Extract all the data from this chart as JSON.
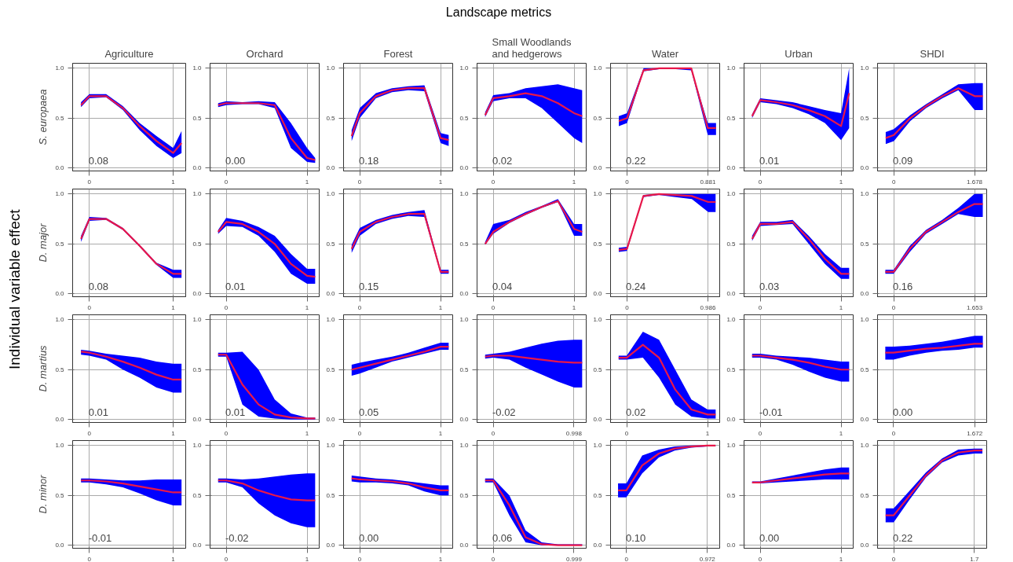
{
  "chart_data": [
    {
      "type": "other",
      "title": "Landscape metrics",
      "ylabel": "Individual variable effect"
    },
    {
      "type": "line",
      "title": "Agriculture",
      "ylabel": "S. europaea",
      "x": [
        -0.1,
        0,
        0.2,
        0.4,
        0.6,
        0.8,
        1,
        1.1
      ],
      "xlim": [
        -0.2,
        1.15
      ],
      "xticks": [
        0,
        1
      ],
      "ylim": [
        -0.03,
        1.05
      ],
      "yticks": [
        {
          "value": 0,
          "label": "0.0"
        },
        {
          "value": 0.5,
          "label": "0.5"
        },
        {
          "value": 1,
          "label": "1.0"
        }
      ],
      "grid": true,
      "annotations": [
        "0.08"
      ],
      "series": [
        {
          "color": "#e8174a",
          "values": [
            0.63,
            0.72,
            0.72,
            0.6,
            0.42,
            0.27,
            0.15,
            0.25
          ],
          "lower": [
            0.61,
            0.7,
            0.71,
            0.58,
            0.38,
            0.22,
            0.1,
            0.15
          ],
          "upper": [
            0.66,
            0.74,
            0.74,
            0.62,
            0.45,
            0.32,
            0.2,
            0.37
          ]
        }
      ]
    },
    {
      "type": "line",
      "title": "Orchard",
      "x": [
        -0.1,
        0,
        0.2,
        0.4,
        0.6,
        0.8,
        1,
        1.1
      ],
      "xlim": [
        -0.2,
        1.15
      ],
      "xticks": [
        0,
        1
      ],
      "ylim": [
        -0.03,
        1.05
      ],
      "yticks": [
        {
          "value": 0,
          "label": "0.0"
        },
        {
          "value": 0.5,
          "label": "0.5"
        },
        {
          "value": 1,
          "label": "1.0"
        }
      ],
      "grid": true,
      "annotations": [
        "0.00"
      ],
      "series": [
        {
          "color": "#e8174a",
          "values": [
            0.63,
            0.65,
            0.65,
            0.65,
            0.63,
            0.3,
            0.1,
            0.08
          ],
          "lower": [
            0.61,
            0.63,
            0.64,
            0.64,
            0.6,
            0.2,
            0.06,
            0.05
          ],
          "upper": [
            0.65,
            0.67,
            0.66,
            0.67,
            0.66,
            0.45,
            0.2,
            0.1
          ]
        }
      ]
    },
    {
      "type": "line",
      "title": "Forest",
      "x": [
        -0.1,
        0,
        0.2,
        0.4,
        0.6,
        0.8,
        1,
        1.1
      ],
      "xlim": [
        -0.2,
        1.15
      ],
      "xticks": [
        0,
        1
      ],
      "ylim": [
        -0.03,
        1.05
      ],
      "yticks": [
        {
          "value": 0,
          "label": "0.0"
        },
        {
          "value": 0.5,
          "label": "0.5"
        },
        {
          "value": 1,
          "label": "1.0"
        }
      ],
      "grid": true,
      "annotations": [
        "0.18"
      ],
      "series": [
        {
          "color": "#e8174a",
          "values": [
            0.32,
            0.55,
            0.72,
            0.78,
            0.8,
            0.8,
            0.3,
            0.28
          ],
          "lower": [
            0.27,
            0.5,
            0.7,
            0.76,
            0.78,
            0.77,
            0.25,
            0.22
          ],
          "upper": [
            0.38,
            0.6,
            0.75,
            0.8,
            0.82,
            0.83,
            0.35,
            0.33
          ]
        }
      ]
    },
    {
      "type": "line",
      "title": "Small Woodlands\nand hedgerows",
      "x": [
        -0.1,
        0,
        0.2,
        0.4,
        0.6,
        0.8,
        1,
        1.1
      ],
      "xlim": [
        -0.2,
        1.15
      ],
      "xticks": [
        0,
        1
      ],
      "ylim": [
        -0.03,
        1.05
      ],
      "yticks": [
        {
          "value": 0,
          "label": "0.0"
        },
        {
          "value": 0.5,
          "label": "0.5"
        },
        {
          "value": 1,
          "label": "1.0"
        }
      ],
      "grid": true,
      "annotations": [
        "0.02"
      ],
      "series": [
        {
          "color": "#e8174a",
          "values": [
            0.53,
            0.7,
            0.72,
            0.75,
            0.72,
            0.65,
            0.55,
            0.52
          ],
          "lower": [
            0.51,
            0.67,
            0.7,
            0.7,
            0.6,
            0.45,
            0.3,
            0.25
          ],
          "upper": [
            0.56,
            0.73,
            0.75,
            0.8,
            0.82,
            0.84,
            0.8,
            0.78
          ]
        }
      ]
    },
    {
      "type": "line",
      "title": "Water",
      "x": [
        -0.09,
        0,
        0.18,
        0.35,
        0.53,
        0.7,
        0.88,
        0.97
      ],
      "xlim": [
        -0.18,
        1.01
      ],
      "xticks": [
        0,
        0.881
      ],
      "ylim": [
        -0.03,
        1.05
      ],
      "yticks": [
        {
          "value": 0,
          "label": "0.0"
        },
        {
          "value": 0.5,
          "label": "0.5"
        },
        {
          "value": 1,
          "label": "1.0"
        }
      ],
      "grid": true,
      "annotations": [
        "0.22"
      ],
      "series": [
        {
          "color": "#e8174a",
          "values": [
            0.47,
            0.5,
            0.98,
            1,
            1,
            1,
            0.4,
            0.4
          ],
          "lower": [
            0.42,
            0.45,
            0.97,
            0.99,
            0.99,
            0.98,
            0.33,
            0.33
          ],
          "upper": [
            0.52,
            0.55,
            1,
            1,
            1,
            1,
            0.45,
            0.45
          ]
        }
      ]
    },
    {
      "type": "line",
      "title": "Urban",
      "x": [
        -0.1,
        0,
        0.2,
        0.4,
        0.6,
        0.8,
        1,
        1.1
      ],
      "xlim": [
        -0.2,
        1.15
      ],
      "xticks": [
        0,
        1
      ],
      "ylim": [
        -0.03,
        1.05
      ],
      "yticks": [
        {
          "value": 0,
          "label": "0.0"
        },
        {
          "value": 0.5,
          "label": "0.5"
        },
        {
          "value": 1,
          "label": "1.0"
        }
      ],
      "grid": true,
      "annotations": [
        "0.01"
      ],
      "series": [
        {
          "color": "#e8174a",
          "values": [
            0.52,
            0.68,
            0.66,
            0.63,
            0.58,
            0.52,
            0.42,
            0.75
          ],
          "lower": [
            0.5,
            0.66,
            0.64,
            0.6,
            0.54,
            0.45,
            0.28,
            0.4
          ],
          "upper": [
            0.54,
            0.7,
            0.68,
            0.66,
            0.62,
            0.58,
            0.55,
            1.0
          ]
        }
      ]
    },
    {
      "type": "line",
      "title": "SHDI",
      "x": [
        -0.17,
        0,
        0.34,
        0.67,
        1.01,
        1.34,
        1.68,
        1.85
      ],
      "xlim": [
        -0.34,
        1.93
      ],
      "xticks": [
        0,
        1.678
      ],
      "ylim": [
        -0.03,
        1.05
      ],
      "yticks": [
        {
          "value": 0,
          "label": "0.0"
        },
        {
          "value": 0.5,
          "label": "0.5"
        },
        {
          "value": 1,
          "label": "1.0"
        }
      ],
      "grid": true,
      "annotations": [
        "0.09"
      ],
      "series": [
        {
          "color": "#e8174a",
          "values": [
            0.3,
            0.33,
            0.5,
            0.62,
            0.72,
            0.8,
            0.72,
            0.72
          ],
          "lower": [
            0.24,
            0.27,
            0.47,
            0.6,
            0.7,
            0.78,
            0.58,
            0.58
          ],
          "upper": [
            0.36,
            0.39,
            0.53,
            0.64,
            0.74,
            0.84,
            0.85,
            0.85
          ]
        }
      ]
    },
    {
      "type": "line",
      "ylabel": "D. major",
      "x": [
        -0.1,
        0,
        0.2,
        0.4,
        0.6,
        0.8,
        1,
        1.1
      ],
      "xlim": [
        -0.2,
        1.15
      ],
      "xticks": [
        0,
        1
      ],
      "ylim": [
        -0.03,
        1.05
      ],
      "yticks": [
        {
          "value": 0,
          "label": "0.0"
        },
        {
          "value": 0.5,
          "label": "0.5"
        },
        {
          "value": 1,
          "label": "1.0"
        }
      ],
      "grid": true,
      "annotations": [
        "0.08"
      ],
      "series": [
        {
          "color": "#e8174a",
          "values": [
            0.55,
            0.75,
            0.75,
            0.65,
            0.48,
            0.3,
            0.2,
            0.2
          ],
          "lower": [
            0.52,
            0.73,
            0.74,
            0.64,
            0.47,
            0.29,
            0.16,
            0.16
          ],
          "upper": [
            0.58,
            0.77,
            0.76,
            0.66,
            0.49,
            0.31,
            0.24,
            0.24
          ]
        }
      ]
    },
    {
      "type": "line",
      "x": [
        -0.1,
        0,
        0.2,
        0.4,
        0.6,
        0.8,
        1,
        1.1
      ],
      "xlim": [
        -0.2,
        1.15
      ],
      "xticks": [
        0,
        1
      ],
      "ylim": [
        -0.03,
        1.05
      ],
      "yticks": [
        {
          "value": 0,
          "label": "0.0"
        },
        {
          "value": 0.5,
          "label": "0.5"
        },
        {
          "value": 1,
          "label": "1.0"
        }
      ],
      "grid": true,
      "annotations": [
        "0.01"
      ],
      "series": [
        {
          "color": "#e8174a",
          "values": [
            0.62,
            0.72,
            0.7,
            0.62,
            0.5,
            0.3,
            0.18,
            0.17
          ],
          "lower": [
            0.6,
            0.68,
            0.67,
            0.58,
            0.42,
            0.2,
            0.1,
            0.1
          ],
          "upper": [
            0.64,
            0.76,
            0.73,
            0.67,
            0.58,
            0.4,
            0.25,
            0.25
          ]
        }
      ]
    },
    {
      "type": "line",
      "x": [
        -0.1,
        0,
        0.2,
        0.4,
        0.6,
        0.8,
        1,
        1.1
      ],
      "xlim": [
        -0.2,
        1.15
      ],
      "xticks": [
        0,
        1
      ],
      "ylim": [
        -0.03,
        1.05
      ],
      "yticks": [
        {
          "value": 0,
          "label": "0.0"
        },
        {
          "value": 0.5,
          "label": "0.5"
        },
        {
          "value": 1,
          "label": "1.0"
        }
      ],
      "grid": true,
      "annotations": [
        "0.15"
      ],
      "series": [
        {
          "color": "#e8174a",
          "values": [
            0.45,
            0.62,
            0.72,
            0.77,
            0.8,
            0.8,
            0.22,
            0.22
          ],
          "lower": [
            0.41,
            0.58,
            0.7,
            0.75,
            0.78,
            0.77,
            0.2,
            0.2
          ],
          "upper": [
            0.49,
            0.66,
            0.74,
            0.79,
            0.82,
            0.84,
            0.24,
            0.24
          ]
        }
      ]
    },
    {
      "type": "line",
      "x": [
        -0.1,
        0,
        0.2,
        0.4,
        0.6,
        0.8,
        1,
        1.1
      ],
      "xlim": [
        -0.2,
        1.15
      ],
      "xticks": [
        0,
        1
      ],
      "ylim": [
        -0.03,
        1.05
      ],
      "yticks": [
        {
          "value": 0,
          "label": "0.0"
        },
        {
          "value": 0.5,
          "label": "0.5"
        },
        {
          "value": 1,
          "label": "1.0"
        }
      ],
      "grid": true,
      "annotations": [
        "0.04"
      ],
      "series": [
        {
          "color": "#e8174a",
          "values": [
            0.5,
            0.62,
            0.72,
            0.8,
            0.87,
            0.93,
            0.65,
            0.62
          ],
          "lower": [
            0.49,
            0.6,
            0.71,
            0.79,
            0.86,
            0.92,
            0.58,
            0.58
          ],
          "upper": [
            0.52,
            0.7,
            0.74,
            0.82,
            0.88,
            0.95,
            0.7,
            0.7
          ]
        }
      ]
    },
    {
      "type": "line",
      "x": [
        -0.1,
        0,
        0.2,
        0.39,
        0.59,
        0.79,
        0.99,
        1.08
      ],
      "xlim": [
        -0.2,
        1.13
      ],
      "xticks": [
        0,
        0.986
      ],
      "ylim": [
        -0.03,
        1.05
      ],
      "yticks": [
        {
          "value": 0,
          "label": "0.0"
        },
        {
          "value": 0.5,
          "label": "0.5"
        },
        {
          "value": 1,
          "label": "1.0"
        }
      ],
      "grid": true,
      "annotations": [
        "0.24"
      ],
      "series": [
        {
          "color": "#e8174a",
          "values": [
            0.44,
            0.45,
            0.98,
            1,
            0.99,
            0.98,
            0.92,
            0.92
          ],
          "lower": [
            0.42,
            0.43,
            0.97,
            0.99,
            0.97,
            0.95,
            0.82,
            0.82
          ],
          "upper": [
            0.46,
            0.47,
            0.99,
            1,
            1,
            1,
            1,
            1
          ]
        }
      ]
    },
    {
      "type": "line",
      "x": [
        -0.1,
        0,
        0.2,
        0.4,
        0.6,
        0.8,
        1,
        1.1
      ],
      "xlim": [
        -0.2,
        1.15
      ],
      "xticks": [
        0,
        1
      ],
      "ylim": [
        -0.03,
        1.05
      ],
      "yticks": [
        {
          "value": 0,
          "label": "0.0"
        },
        {
          "value": 0.5,
          "label": "0.5"
        },
        {
          "value": 1,
          "label": "1.0"
        }
      ],
      "grid": true,
      "annotations": [
        "0.03"
      ],
      "series": [
        {
          "color": "#e8174a",
          "values": [
            0.55,
            0.7,
            0.7,
            0.72,
            0.55,
            0.35,
            0.2,
            0.2
          ],
          "lower": [
            0.53,
            0.68,
            0.69,
            0.7,
            0.5,
            0.3,
            0.15,
            0.15
          ],
          "upper": [
            0.58,
            0.72,
            0.72,
            0.74,
            0.58,
            0.4,
            0.26,
            0.26
          ]
        }
      ]
    },
    {
      "type": "line",
      "x": [
        -0.17,
        0,
        0.33,
        0.66,
        0.99,
        1.32,
        1.65,
        1.82
      ],
      "xlim": [
        -0.33,
        1.9
      ],
      "xticks": [
        0,
        1.653
      ],
      "ylim": [
        -0.03,
        1.05
      ],
      "yticks": [
        {
          "value": 0,
          "label": "0.0"
        },
        {
          "value": 0.5,
          "label": "0.5"
        },
        {
          "value": 1,
          "label": "1.0"
        }
      ],
      "grid": true,
      "annotations": [
        "0.16"
      ],
      "series": [
        {
          "color": "#e8174a",
          "values": [
            0.22,
            0.22,
            0.45,
            0.62,
            0.72,
            0.82,
            0.9,
            0.9
          ],
          "lower": [
            0.2,
            0.2,
            0.42,
            0.6,
            0.7,
            0.8,
            0.77,
            0.77
          ],
          "upper": [
            0.24,
            0.24,
            0.48,
            0.64,
            0.74,
            0.86,
            1,
            1
          ]
        }
      ]
    },
    {
      "type": "line",
      "ylabel": "D. martius",
      "x": [
        -0.1,
        0,
        0.2,
        0.4,
        0.6,
        0.8,
        1,
        1.1
      ],
      "xlim": [
        -0.2,
        1.15
      ],
      "xticks": [
        0,
        1
      ],
      "ylim": [
        -0.03,
        1.05
      ],
      "yticks": [
        {
          "value": 0,
          "label": "0.0"
        },
        {
          "value": 0.5,
          "label": "0.5"
        },
        {
          "value": 1,
          "label": "1.0"
        }
      ],
      "grid": true,
      "annotations": [
        "0.01"
      ],
      "series": [
        {
          "color": "#e8174a",
          "values": [
            0.68,
            0.67,
            0.63,
            0.58,
            0.52,
            0.45,
            0.4,
            0.4
          ],
          "lower": [
            0.65,
            0.64,
            0.6,
            0.5,
            0.42,
            0.32,
            0.27,
            0.27
          ],
          "upper": [
            0.7,
            0.69,
            0.66,
            0.64,
            0.62,
            0.58,
            0.56,
            0.56
          ]
        }
      ]
    },
    {
      "type": "line",
      "x": [
        -0.1,
        0,
        0.2,
        0.4,
        0.6,
        0.8,
        1,
        1.1
      ],
      "xlim": [
        -0.2,
        1.15
      ],
      "xticks": [
        0,
        1
      ],
      "ylim": [
        -0.03,
        1.05
      ],
      "yticks": [
        {
          "value": 0,
          "label": "0.0"
        },
        {
          "value": 0.5,
          "label": "0.5"
        },
        {
          "value": 1,
          "label": "1.0"
        }
      ],
      "grid": true,
      "annotations": [
        "0.01"
      ],
      "series": [
        {
          "color": "#e8174a",
          "values": [
            0.65,
            0.65,
            0.35,
            0.15,
            0.05,
            0.02,
            0.01,
            0.01
          ],
          "lower": [
            0.63,
            0.63,
            0.15,
            0.03,
            0.01,
            0,
            0,
            0
          ],
          "upper": [
            0.67,
            0.67,
            0.68,
            0.5,
            0.2,
            0.06,
            0.02,
            0.02
          ]
        }
      ]
    },
    {
      "type": "line",
      "x": [
        -0.1,
        0,
        0.2,
        0.4,
        0.6,
        0.8,
        1,
        1.1
      ],
      "xlim": [
        -0.2,
        1.15
      ],
      "xticks": [
        0,
        1
      ],
      "ylim": [
        -0.03,
        1.05
      ],
      "yticks": [
        {
          "value": 0,
          "label": "0.0"
        },
        {
          "value": 0.5,
          "label": "0.5"
        },
        {
          "value": 1,
          "label": "1.0"
        }
      ],
      "grid": true,
      "annotations": [
        "0.05"
      ],
      "series": [
        {
          "color": "#e8174a",
          "values": [
            0.5,
            0.52,
            0.56,
            0.6,
            0.64,
            0.68,
            0.73,
            0.73
          ],
          "lower": [
            0.44,
            0.46,
            0.52,
            0.58,
            0.62,
            0.66,
            0.7,
            0.7
          ],
          "upper": [
            0.55,
            0.57,
            0.6,
            0.63,
            0.67,
            0.72,
            0.77,
            0.77
          ]
        }
      ]
    },
    {
      "type": "line",
      "x": [
        -0.1,
        0,
        0.2,
        0.4,
        0.6,
        0.8,
        1,
        1.1
      ],
      "xlim": [
        -0.2,
        1.15
      ],
      "xticks": [
        0,
        0.998
      ],
      "ylim": [
        -0.03,
        1.05
      ],
      "yticks": [
        {
          "value": 0,
          "label": "0.0"
        },
        {
          "value": 0.5,
          "label": "0.5"
        },
        {
          "value": 1,
          "label": "1.0"
        }
      ],
      "grid": true,
      "annotations": [
        "-0.02"
      ],
      "series": [
        {
          "color": "#e8174a",
          "values": [
            0.63,
            0.64,
            0.64,
            0.62,
            0.6,
            0.58,
            0.57,
            0.57
          ],
          "lower": [
            0.61,
            0.62,
            0.6,
            0.52,
            0.45,
            0.38,
            0.32,
            0.32
          ],
          "upper": [
            0.65,
            0.66,
            0.68,
            0.72,
            0.76,
            0.79,
            0.8,
            0.8
          ]
        }
      ]
    },
    {
      "type": "line",
      "x": [
        -0.1,
        0,
        0.2,
        0.4,
        0.6,
        0.8,
        1,
        1.1
      ],
      "xlim": [
        -0.2,
        1.15
      ],
      "xticks": [
        0,
        1
      ],
      "ylim": [
        -0.03,
        1.05
      ],
      "yticks": [
        {
          "value": 0,
          "label": "0.0"
        },
        {
          "value": 0.5,
          "label": "0.5"
        },
        {
          "value": 1,
          "label": "1.0"
        }
      ],
      "grid": true,
      "annotations": [
        "0.02"
      ],
      "series": [
        {
          "color": "#e8174a",
          "values": [
            0.62,
            0.62,
            0.75,
            0.62,
            0.3,
            0.1,
            0.05,
            0.05
          ],
          "lower": [
            0.6,
            0.6,
            0.62,
            0.42,
            0.15,
            0.03,
            0.01,
            0.01
          ],
          "upper": [
            0.64,
            0.64,
            0.88,
            0.8,
            0.5,
            0.2,
            0.1,
            0.1
          ]
        }
      ]
    },
    {
      "type": "line",
      "x": [
        -0.1,
        0,
        0.2,
        0.4,
        0.6,
        0.8,
        1,
        1.1
      ],
      "xlim": [
        -0.2,
        1.15
      ],
      "xticks": [
        0,
        1
      ],
      "ylim": [
        -0.03,
        1.05
      ],
      "yticks": [
        {
          "value": 0,
          "label": "0.0"
        },
        {
          "value": 0.5,
          "label": "0.5"
        },
        {
          "value": 1,
          "label": "1.0"
        }
      ],
      "grid": true,
      "annotations": [
        "-0.01"
      ],
      "series": [
        {
          "color": "#e8174a",
          "values": [
            0.64,
            0.64,
            0.62,
            0.6,
            0.57,
            0.53,
            0.5,
            0.5
          ],
          "lower": [
            0.62,
            0.62,
            0.6,
            0.55,
            0.48,
            0.42,
            0.38,
            0.38
          ],
          "upper": [
            0.66,
            0.66,
            0.64,
            0.63,
            0.62,
            0.6,
            0.58,
            0.58
          ]
        }
      ]
    },
    {
      "type": "line",
      "x": [
        -0.17,
        0,
        0.33,
        0.67,
        1,
        1.34,
        1.67,
        1.84
      ],
      "xlim": [
        -0.33,
        1.92
      ],
      "xticks": [
        0,
        1.672
      ],
      "ylim": [
        -0.03,
        1.05
      ],
      "yticks": [
        {
          "value": 0,
          "label": "0.0"
        },
        {
          "value": 0.5,
          "label": "0.5"
        },
        {
          "value": 1,
          "label": "1.0"
        }
      ],
      "grid": true,
      "annotations": [
        "0.00"
      ],
      "series": [
        {
          "color": "#e8174a",
          "values": [
            0.67,
            0.67,
            0.69,
            0.71,
            0.72,
            0.74,
            0.76,
            0.76
          ],
          "lower": [
            0.6,
            0.6,
            0.64,
            0.67,
            0.69,
            0.7,
            0.72,
            0.72
          ],
          "upper": [
            0.73,
            0.73,
            0.74,
            0.76,
            0.78,
            0.81,
            0.84,
            0.84
          ]
        }
      ]
    },
    {
      "type": "line",
      "ylabel": "D. minor",
      "x": [
        -0.1,
        0,
        0.2,
        0.4,
        0.6,
        0.8,
        1,
        1.1
      ],
      "xlim": [
        -0.2,
        1.15
      ],
      "xticks": [
        0,
        1
      ],
      "ylim": [
        -0.03,
        1.05
      ],
      "yticks": [
        {
          "value": 0,
          "label": "0.0"
        },
        {
          "value": 0.5,
          "label": "0.5"
        },
        {
          "value": 1,
          "label": "1.0"
        }
      ],
      "grid": true,
      "annotations": [
        "-0.01"
      ],
      "series": [
        {
          "color": "#e8174a",
          "values": [
            0.65,
            0.65,
            0.64,
            0.62,
            0.59,
            0.56,
            0.53,
            0.53
          ],
          "lower": [
            0.63,
            0.63,
            0.61,
            0.58,
            0.52,
            0.45,
            0.4,
            0.4
          ],
          "upper": [
            0.67,
            0.67,
            0.66,
            0.65,
            0.65,
            0.66,
            0.66,
            0.66
          ]
        }
      ]
    },
    {
      "type": "line",
      "x": [
        -0.1,
        0,
        0.2,
        0.4,
        0.6,
        0.8,
        1,
        1.1
      ],
      "xlim": [
        -0.2,
        1.15
      ],
      "xticks": [
        0,
        1
      ],
      "ylim": [
        -0.03,
        1.05
      ],
      "yticks": [
        {
          "value": 0,
          "label": "0.0"
        },
        {
          "value": 0.5,
          "label": "0.5"
        },
        {
          "value": 1,
          "label": "1.0"
        }
      ],
      "grid": true,
      "annotations": [
        "-0.02"
      ],
      "series": [
        {
          "color": "#e8174a",
          "values": [
            0.65,
            0.65,
            0.62,
            0.55,
            0.5,
            0.46,
            0.45,
            0.45
          ],
          "lower": [
            0.63,
            0.63,
            0.58,
            0.42,
            0.3,
            0.22,
            0.18,
            0.18
          ],
          "upper": [
            0.67,
            0.67,
            0.66,
            0.67,
            0.69,
            0.71,
            0.72,
            0.72
          ]
        }
      ]
    },
    {
      "type": "line",
      "x": [
        -0.1,
        0,
        0.2,
        0.4,
        0.6,
        0.8,
        1,
        1.1
      ],
      "xlim": [
        -0.2,
        1.15
      ],
      "xticks": [
        0,
        1
      ],
      "ylim": [
        -0.03,
        1.05
      ],
      "yticks": [
        {
          "value": 0,
          "label": "0.0"
        },
        {
          "value": 0.5,
          "label": "0.5"
        },
        {
          "value": 1,
          "label": "1.0"
        }
      ],
      "grid": true,
      "annotations": [
        "0.00"
      ],
      "series": [
        {
          "color": "#e8174a",
          "values": [
            0.67,
            0.66,
            0.65,
            0.64,
            0.62,
            0.58,
            0.55,
            0.55
          ],
          "lower": [
            0.64,
            0.63,
            0.63,
            0.62,
            0.6,
            0.54,
            0.5,
            0.5
          ],
          "upper": [
            0.7,
            0.69,
            0.67,
            0.66,
            0.64,
            0.62,
            0.6,
            0.6
          ]
        }
      ]
    },
    {
      "type": "line",
      "x": [
        -0.1,
        0,
        0.2,
        0.4,
        0.6,
        0.8,
        1,
        1.1
      ],
      "xlim": [
        -0.2,
        1.15
      ],
      "xticks": [
        0,
        0.999
      ],
      "ylim": [
        -0.03,
        1.05
      ],
      "yticks": [
        {
          "value": 0,
          "label": "0.0"
        },
        {
          "value": 0.5,
          "label": "0.5"
        },
        {
          "value": 1,
          "label": "1.0"
        }
      ],
      "grid": true,
      "annotations": [
        "0.06"
      ],
      "series": [
        {
          "color": "#e8174a",
          "values": [
            0.65,
            0.65,
            0.4,
            0.08,
            0.01,
            0,
            0,
            0
          ],
          "lower": [
            0.63,
            0.63,
            0.3,
            0.03,
            0,
            0,
            0,
            0
          ],
          "upper": [
            0.67,
            0.67,
            0.5,
            0.15,
            0.03,
            0.01,
            0.01,
            0.01
          ]
        }
      ]
    },
    {
      "type": "line",
      "x": [
        -0.1,
        0,
        0.19,
        0.39,
        0.58,
        0.78,
        0.97,
        1.07
      ],
      "xlim": [
        -0.19,
        1.12
      ],
      "xticks": [
        0,
        0.972
      ],
      "ylim": [
        -0.03,
        1.05
      ],
      "yticks": [
        {
          "value": 0,
          "label": "0.0"
        },
        {
          "value": 0.5,
          "label": "0.5"
        },
        {
          "value": 1,
          "label": "1.0"
        }
      ],
      "grid": true,
      "annotations": [
        "0.10"
      ],
      "series": [
        {
          "color": "#e8174a",
          "values": [
            0.55,
            0.55,
            0.8,
            0.92,
            0.97,
            0.99,
            1,
            1
          ],
          "lower": [
            0.48,
            0.48,
            0.72,
            0.88,
            0.95,
            0.98,
            0.99,
            0.99
          ],
          "upper": [
            0.62,
            0.62,
            0.9,
            0.96,
            0.99,
            1,
            1,
            1
          ]
        }
      ]
    },
    {
      "type": "line",
      "x": [
        -0.1,
        0,
        0.2,
        0.4,
        0.6,
        0.8,
        1,
        1.1
      ],
      "xlim": [
        -0.2,
        1.15
      ],
      "xticks": [
        0,
        1
      ],
      "ylim": [
        -0.03,
        1.05
      ],
      "yticks": [
        {
          "value": 0,
          "label": "0.0"
        },
        {
          "value": 0.5,
          "label": "0.5"
        },
        {
          "value": 1,
          "label": "1.0"
        }
      ],
      "grid": true,
      "annotations": [
        "0.00"
      ],
      "series": [
        {
          "color": "#e8174a",
          "values": [
            0.63,
            0.63,
            0.65,
            0.67,
            0.69,
            0.71,
            0.72,
            0.72
          ],
          "lower": [
            0.62,
            0.62,
            0.63,
            0.64,
            0.65,
            0.66,
            0.66,
            0.66
          ],
          "upper": [
            0.64,
            0.64,
            0.67,
            0.7,
            0.73,
            0.76,
            0.78,
            0.78
          ]
        }
      ]
    },
    {
      "type": "line",
      "x": [
        -0.17,
        0,
        0.34,
        0.68,
        1.02,
        1.36,
        1.7,
        1.87
      ],
      "xlim": [
        -0.34,
        1.96
      ],
      "xticks": [
        0,
        1.7
      ],
      "ylim": [
        -0.03,
        1.05
      ],
      "yticks": [
        {
          "value": 0,
          "label": "0.0"
        },
        {
          "value": 0.5,
          "label": "0.5"
        },
        {
          "value": 1,
          "label": "1.0"
        }
      ],
      "grid": true,
      "annotations": [
        "0.22"
      ],
      "series": [
        {
          "color": "#e8174a",
          "values": [
            0.3,
            0.3,
            0.5,
            0.7,
            0.85,
            0.93,
            0.95,
            0.95
          ],
          "lower": [
            0.23,
            0.23,
            0.46,
            0.68,
            0.83,
            0.9,
            0.92,
            0.92
          ],
          "upper": [
            0.37,
            0.37,
            0.55,
            0.73,
            0.87,
            0.96,
            0.97,
            0.97
          ]
        }
      ]
    }
  ]
}
